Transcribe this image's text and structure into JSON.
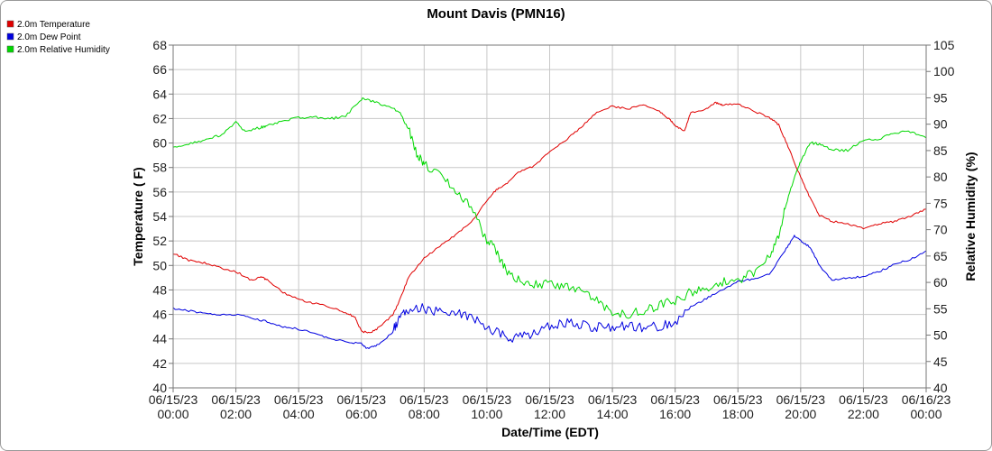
{
  "chart_data": {
    "type": "line",
    "title": "Mount Davis (PMN16)",
    "xlabel": "Date/Time (EDT)",
    "ylabel": "Temperature ( F)",
    "y2label": "Relative Humidity (%)",
    "xlim": [
      0,
      24
    ],
    "ylim": [
      40,
      68
    ],
    "y2lim": [
      40,
      105
    ],
    "x_ticks": [
      {
        "x": 0,
        "line1": "06/15/23",
        "line2": "00:00"
      },
      {
        "x": 2,
        "line1": "06/15/23",
        "line2": "02:00"
      },
      {
        "x": 4,
        "line1": "06/15/23",
        "line2": "04:00"
      },
      {
        "x": 6,
        "line1": "06/15/23",
        "line2": "06:00"
      },
      {
        "x": 8,
        "line1": "06/15/23",
        "line2": "08:00"
      },
      {
        "x": 10,
        "line1": "06/15/23",
        "line2": "10:00"
      },
      {
        "x": 12,
        "line1": "06/15/23",
        "line2": "12:00"
      },
      {
        "x": 14,
        "line1": "06/15/23",
        "line2": "14:00"
      },
      {
        "x": 16,
        "line1": "06/15/23",
        "line2": "16:00"
      },
      {
        "x": 18,
        "line1": "06/15/23",
        "line2": "18:00"
      },
      {
        "x": 20,
        "line1": "06/15/23",
        "line2": "20:00"
      },
      {
        "x": 22,
        "line1": "06/15/23",
        "line2": "22:00"
      },
      {
        "x": 24,
        "line1": "06/16/23",
        "line2": "00:00"
      }
    ],
    "y_ticks": [
      "40",
      "42",
      "44",
      "46",
      "48",
      "50",
      "52",
      "54",
      "56",
      "58",
      "60",
      "62",
      "64",
      "66",
      "68"
    ],
    "y2_ticks": [
      "40",
      "45",
      "50",
      "55",
      "60",
      "65",
      "70",
      "75",
      "80",
      "85",
      "90",
      "95",
      "100",
      "105"
    ],
    "grid": true,
    "legend_position": "top-left",
    "series": [
      {
        "name": "2.0m Temperature",
        "axis": "left",
        "color": "#e00000",
        "points": [
          [
            0,
            51.0
          ],
          [
            0.5,
            50.4
          ],
          [
            1,
            50.2
          ],
          [
            1.5,
            49.8
          ],
          [
            2,
            49.5
          ],
          [
            2.5,
            48.8
          ],
          [
            2.8,
            49.1
          ],
          [
            3,
            48.8
          ],
          [
            3.5,
            47.8
          ],
          [
            4,
            47.2
          ],
          [
            4.5,
            46.9
          ],
          [
            5,
            46.6
          ],
          [
            5.5,
            46.1
          ],
          [
            5.8,
            45.8
          ],
          [
            6,
            44.6
          ],
          [
            6.3,
            44.5
          ],
          [
            6.6,
            45.0
          ],
          [
            7,
            46.0
          ],
          [
            7.2,
            47.0
          ],
          [
            7.5,
            49.0
          ],
          [
            8,
            50.6
          ],
          [
            8.5,
            51.6
          ],
          [
            9,
            52.5
          ],
          [
            9.5,
            53.5
          ],
          [
            10,
            55.3
          ],
          [
            10.3,
            56.2
          ],
          [
            10.6,
            56.6
          ],
          [
            11,
            57.6
          ],
          [
            11.5,
            58.1
          ],
          [
            12,
            59.3
          ],
          [
            12.5,
            60.2
          ],
          [
            13,
            61.3
          ],
          [
            13.5,
            62.5
          ],
          [
            14,
            63.0
          ],
          [
            14.5,
            62.8
          ],
          [
            15,
            63.1
          ],
          [
            15.5,
            62.6
          ],
          [
            15.8,
            62.0
          ],
          [
            16,
            61.4
          ],
          [
            16.3,
            61.0
          ],
          [
            16.5,
            62.5
          ],
          [
            17,
            62.8
          ],
          [
            17.3,
            63.3
          ],
          [
            17.5,
            63.1
          ],
          [
            18,
            63.2
          ],
          [
            18.5,
            62.6
          ],
          [
            19,
            62.1
          ],
          [
            19.3,
            61.5
          ],
          [
            19.6,
            59.7
          ],
          [
            20,
            57.2
          ],
          [
            20.3,
            55.5
          ],
          [
            20.6,
            54.1
          ],
          [
            21,
            53.6
          ],
          [
            21.5,
            53.4
          ],
          [
            22,
            53.0
          ],
          [
            22.5,
            53.4
          ],
          [
            23,
            53.6
          ],
          [
            23.5,
            54.0
          ],
          [
            24,
            54.6
          ]
        ]
      },
      {
        "name": "2.0m Dew Point",
        "axis": "left",
        "color": "#0000e0",
        "points": [
          [
            0,
            46.5
          ],
          [
            0.5,
            46.3
          ],
          [
            1,
            46.1
          ],
          [
            1.5,
            46.0
          ],
          [
            2,
            46.0
          ],
          [
            2.5,
            45.7
          ],
          [
            3,
            45.4
          ],
          [
            3.5,
            45.0
          ],
          [
            4,
            44.8
          ],
          [
            4.5,
            44.5
          ],
          [
            5,
            44.0
          ],
          [
            5.5,
            43.8
          ],
          [
            6,
            43.6
          ],
          [
            6.2,
            43.2
          ],
          [
            6.5,
            43.5
          ],
          [
            7,
            44.5
          ],
          [
            7.2,
            45.8
          ],
          [
            7.5,
            46.3
          ],
          [
            8,
            46.5
          ],
          [
            8.5,
            46.3
          ],
          [
            9,
            46.2
          ],
          [
            9.5,
            45.8
          ],
          [
            10,
            44.8
          ],
          [
            10.5,
            44.3
          ],
          [
            11,
            44.0
          ],
          [
            11.5,
            44.6
          ],
          [
            12,
            45.0
          ],
          [
            12.5,
            45.3
          ],
          [
            13,
            45.2
          ],
          [
            13.5,
            45.0
          ],
          [
            14,
            45.0
          ],
          [
            14.5,
            45.1
          ],
          [
            15,
            44.9
          ],
          [
            15.5,
            45.0
          ],
          [
            16,
            45.5
          ],
          [
            16.5,
            46.6
          ],
          [
            17,
            47.3
          ],
          [
            17.5,
            48.0
          ],
          [
            18,
            48.7
          ],
          [
            18.5,
            48.9
          ],
          [
            19,
            49.3
          ],
          [
            19.5,
            51.2
          ],
          [
            19.8,
            52.4
          ],
          [
            20,
            52.0
          ],
          [
            20.3,
            51.5
          ],
          [
            20.6,
            50.0
          ],
          [
            21,
            48.8
          ],
          [
            21.5,
            49.0
          ],
          [
            22,
            49.1
          ],
          [
            22.5,
            49.5
          ],
          [
            23,
            50.1
          ],
          [
            23.5,
            50.5
          ],
          [
            24,
            51.2
          ]
        ]
      },
      {
        "name": "2.0m Relative Humidity",
        "axis": "right",
        "color": "#00d800",
        "points": [
          [
            0,
            85.5
          ],
          [
            0.5,
            86.2
          ],
          [
            1,
            87.0
          ],
          [
            1.5,
            87.9
          ],
          [
            2,
            90.3
          ],
          [
            2.3,
            88.6
          ],
          [
            2.8,
            89.4
          ],
          [
            3,
            89.8
          ],
          [
            3.5,
            90.6
          ],
          [
            4,
            91.2
          ],
          [
            4.5,
            91.3
          ],
          [
            5,
            91.0
          ],
          [
            5.5,
            91.6
          ],
          [
            6,
            94.8
          ],
          [
            6.3,
            94.4
          ],
          [
            6.8,
            93.5
          ],
          [
            7.2,
            92.4
          ],
          [
            7.5,
            89.0
          ],
          [
            7.8,
            84.0
          ],
          [
            8,
            82.5
          ],
          [
            8.5,
            80.5
          ],
          [
            9,
            77.5
          ],
          [
            9.5,
            74.0
          ],
          [
            10,
            68.0
          ],
          [
            10.3,
            66.0
          ],
          [
            10.6,
            62.5
          ],
          [
            11,
            60.5
          ],
          [
            11.5,
            59.5
          ],
          [
            12,
            60.0
          ],
          [
            12.5,
            59.3
          ],
          [
            13,
            58.2
          ],
          [
            13.5,
            56.5
          ],
          [
            14,
            54.5
          ],
          [
            14.5,
            54.0
          ],
          [
            15,
            54.8
          ],
          [
            15.5,
            55.6
          ],
          [
            16,
            56.5
          ],
          [
            16.5,
            58.2
          ],
          [
            17,
            59.0
          ],
          [
            17.5,
            60.0
          ],
          [
            18,
            60.4
          ],
          [
            18.5,
            62.0
          ],
          [
            19,
            65.0
          ],
          [
            19.3,
            69.0
          ],
          [
            19.5,
            74.0
          ],
          [
            19.8,
            80.0
          ],
          [
            20,
            83.0
          ],
          [
            20.3,
            86.5
          ],
          [
            20.6,
            86.2
          ],
          [
            21,
            85.2
          ],
          [
            21.5,
            85.0
          ],
          [
            22,
            87.0
          ],
          [
            22.5,
            87.2
          ],
          [
            23,
            88.4
          ],
          [
            23.5,
            88.6
          ],
          [
            24,
            87.4
          ]
        ]
      }
    ]
  }
}
